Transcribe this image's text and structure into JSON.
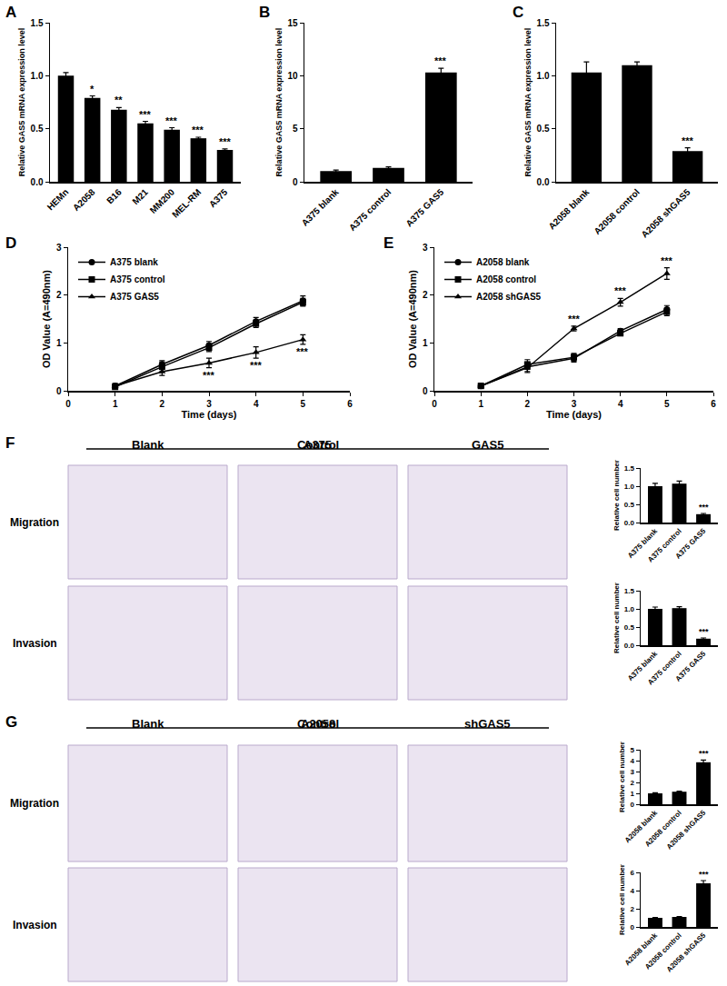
{
  "chart_data": [
    {
      "panel_label": "A",
      "type": "bar",
      "categories": [
        "HEMn",
        "A2058",
        "B16",
        "M21",
        "MM200",
        "MEL-RM",
        "A375"
      ],
      "values": [
        1.0,
        0.79,
        0.68,
        0.55,
        0.49,
        0.41,
        0.3
      ],
      "errors": [
        0.03,
        0.02,
        0.02,
        0.02,
        0.02,
        0.01,
        0.01
      ],
      "significance": [
        null,
        "*",
        "**",
        "***",
        "***",
        "***",
        "***"
      ],
      "y_label": "Relative GAS5 mRNA expression level",
      "ylim": [
        0,
        1.5
      ],
      "yticks": [
        {
          "value": 0,
          "label": "0.0"
        },
        {
          "value": 0.5,
          "label": "0.5"
        },
        {
          "value": 1,
          "label": "1.0"
        },
        {
          "value": 1.5,
          "label": "1.5"
        }
      ],
      "color": "#000000",
      "grid": false
    },
    {
      "panel_label": "B",
      "type": "bar",
      "categories": [
        "A375 blank",
        "A375 control",
        "A375 GAS5"
      ],
      "values": [
        1.0,
        1.3,
        10.3
      ],
      "errors": [
        0.1,
        0.1,
        0.4
      ],
      "significance": [
        null,
        null,
        "***"
      ],
      "y_label": "Relative GAS5 mRNA expression level",
      "ylim": [
        0,
        15
      ],
      "yticks": [
        0,
        5,
        10,
        15
      ],
      "color": "#000000",
      "grid": false
    },
    {
      "panel_label": "C",
      "type": "bar",
      "categories": [
        "A2058 blank",
        "A2058 control",
        "A2058 shGAS5"
      ],
      "values": [
        1.03,
        1.1,
        0.29
      ],
      "errors": [
        0.1,
        0.03,
        0.03
      ],
      "significance": [
        null,
        null,
        "***"
      ],
      "y_label": "Relative GAS5 mRNA expression level",
      "ylim": [
        0,
        1.5
      ],
      "yticks": [
        {
          "value": 0,
          "label": "0.0"
        },
        {
          "value": 0.5,
          "label": "0.5"
        },
        {
          "value": 1,
          "label": "1.0"
        },
        {
          "value": 1.5,
          "label": "1.5"
        }
      ],
      "color": "#000000",
      "grid": false
    },
    {
      "panel_label": "D",
      "type": "line",
      "x": [
        1,
        2,
        3,
        4,
        5
      ],
      "series": [
        {
          "name": "A375 blank",
          "marker": "circle",
          "values": [
            0.1,
            0.55,
            0.95,
            1.45,
            1.88
          ],
          "errors": [
            0.05,
            0.08,
            0.08,
            0.08,
            0.1
          ]
        },
        {
          "name": "A375 control",
          "marker": "square",
          "values": [
            0.08,
            0.5,
            0.9,
            1.4,
            1.85
          ],
          "errors": [
            0.04,
            0.1,
            0.08,
            0.08,
            0.08
          ]
        },
        {
          "name": "A375 GAS5",
          "marker": "triangle-up",
          "values": [
            0.1,
            0.4,
            0.58,
            0.8,
            1.07
          ],
          "errors": [
            0.05,
            0.08,
            0.1,
            0.12,
            0.1
          ],
          "significance": [
            null,
            null,
            "***",
            "***",
            "***"
          ]
        }
      ],
      "x_label": "Time (days)",
      "y_label": "OD Value (A=490nm)",
      "xlim": [
        0,
        6
      ],
      "xticks": [
        0,
        1,
        2,
        3,
        4,
        5,
        6
      ],
      "ylim": [
        0,
        3
      ],
      "yticks": [
        0,
        1,
        2,
        3
      ],
      "legend": "upper left",
      "color": "#000000",
      "grid": false
    },
    {
      "panel_label": "E",
      "type": "line",
      "x": [
        1,
        2,
        3,
        4,
        5
      ],
      "series": [
        {
          "name": "A2058 blank",
          "marker": "circle",
          "values": [
            0.1,
            0.5,
            0.68,
            1.25,
            1.7
          ],
          "errors": [
            0.05,
            0.1,
            0.08,
            0.05,
            0.08
          ]
        },
        {
          "name": "A2058 control",
          "marker": "square",
          "values": [
            0.1,
            0.55,
            0.7,
            1.2,
            1.65
          ],
          "errors": [
            0.05,
            0.1,
            0.08,
            0.05,
            0.08
          ]
        },
        {
          "name": "A2058 shGAS5",
          "marker": "triangle-up",
          "values": [
            0.1,
            0.48,
            1.3,
            1.85,
            2.45
          ],
          "errors": [
            0.05,
            0.1,
            0.05,
            0.08,
            0.12
          ],
          "significance": [
            null,
            null,
            "***",
            "***",
            "***"
          ]
        }
      ],
      "x_label": "Time (days)",
      "y_label": "OD Value (A=490nm)",
      "xlim": [
        0,
        6
      ],
      "xticks": [
        0,
        1,
        2,
        3,
        4,
        5,
        6
      ],
      "ylim": [
        0,
        3
      ],
      "yticks": [
        0,
        1,
        2,
        3
      ],
      "legend": "upper left",
      "color": "#000000",
      "grid": false
    },
    {
      "type": "bar",
      "categories": [
        "A375 blank",
        "A375 control",
        "A375 GAS5"
      ],
      "values": [
        1.0,
        1.07,
        0.23
      ],
      "errors": [
        0.08,
        0.07,
        0.02
      ],
      "significance": [
        null,
        null,
        "***"
      ],
      "y_label": "Relative cell number",
      "ylim": [
        0,
        1.5
      ],
      "yticks": [
        {
          "value": 0,
          "label": "0.0"
        },
        {
          "value": 0.5,
          "label": "0.5"
        },
        {
          "value": 1,
          "label": "1.0"
        },
        {
          "value": 1.5,
          "label": "1.5"
        }
      ],
      "color": "#000000",
      "grid": false
    },
    {
      "type": "bar",
      "categories": [
        "A375 blank",
        "A375 control",
        "A375 GAS5"
      ],
      "values": [
        1.0,
        1.02,
        0.18
      ],
      "errors": [
        0.05,
        0.04,
        0.02
      ],
      "significance": [
        null,
        null,
        "***"
      ],
      "y_label": "Relative cell number",
      "ylim": [
        0,
        1.5
      ],
      "yticks": [
        {
          "value": 0,
          "label": "0.0"
        },
        {
          "value": 0.5,
          "label": "0.5"
        },
        {
          "value": 1,
          "label": "1.0"
        },
        {
          "value": 1.5,
          "label": "1.5"
        }
      ],
      "color": "#000000",
      "grid": false
    },
    {
      "type": "bar",
      "categories": [
        "A2058 blank",
        "A2058 control",
        "A2058 shGAS5"
      ],
      "values": [
        1.0,
        1.15,
        3.85
      ],
      "errors": [
        0.05,
        0.05,
        0.2
      ],
      "significance": [
        null,
        null,
        "***"
      ],
      "y_label": "Relative cell number",
      "ylim": [
        0,
        5
      ],
      "yticks": [
        0,
        1,
        2,
        3,
        4,
        5
      ],
      "color": "#000000",
      "grid": false
    },
    {
      "type": "bar",
      "categories": [
        "A2058 blank",
        "A2058 control",
        "A2058 shGAS5"
      ],
      "values": [
        1.0,
        1.1,
        4.8
      ],
      "errors": [
        0.05,
        0.05,
        0.3
      ],
      "significance": [
        null,
        null,
        "***"
      ],
      "y_label": "Relative cell number",
      "ylim": [
        0,
        6
      ],
      "yticks": [
        0,
        2,
        4,
        6
      ],
      "color": "#000000",
      "grid": false
    }
  ],
  "micrograph_panels": [
    {
      "panel_label": "F",
      "header": "A375",
      "columns": [
        "Blank",
        "Control",
        "GAS5"
      ],
      "rows": [
        "Migration",
        "Invasion"
      ]
    },
    {
      "panel_label": "G",
      "header": "A2058",
      "columns": [
        "Blank",
        "Control",
        "shGAS5"
      ],
      "rows": [
        "Migration",
        "Invasion"
      ]
    }
  ]
}
